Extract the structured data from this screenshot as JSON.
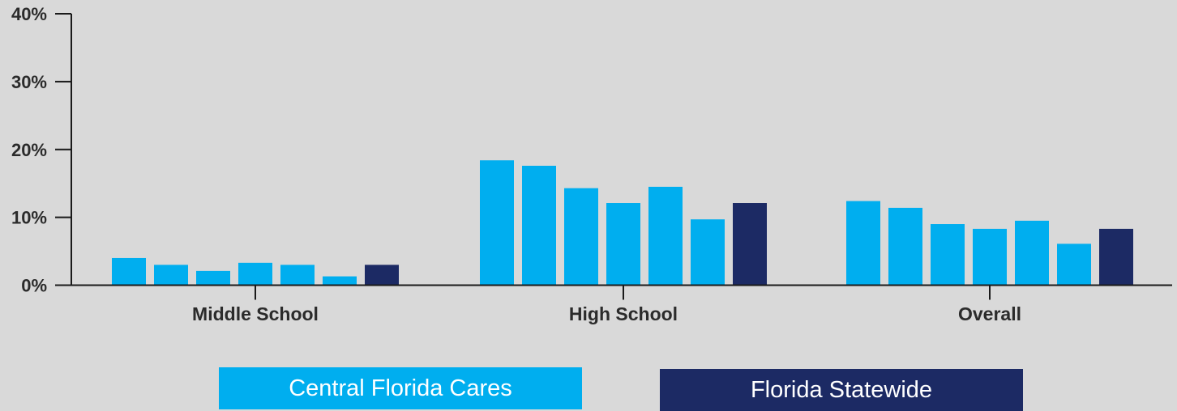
{
  "chart_data": {
    "type": "bar",
    "title": "",
    "xlabel": "",
    "ylabel": "",
    "ylim": [
      0,
      40
    ],
    "y_ticks": [
      "0%",
      "10%",
      "20%",
      "30%",
      "40%"
    ],
    "y_tick_values": [
      0,
      10,
      20,
      30,
      40
    ],
    "categories": [
      "Middle School",
      "High School",
      "Overall"
    ],
    "series": [
      {
        "legend_group": "Central Florida Cares",
        "color": "#00aeef",
        "values": [
          4.0,
          18.4,
          12.4
        ]
      },
      {
        "legend_group": "Central Florida Cares",
        "color": "#00aeef",
        "values": [
          3.0,
          17.6,
          11.4
        ]
      },
      {
        "legend_group": "Central Florida Cares",
        "color": "#00aeef",
        "values": [
          2.1,
          14.3,
          9.0
        ]
      },
      {
        "legend_group": "Central Florida Cares",
        "color": "#00aeef",
        "values": [
          3.3,
          12.1,
          8.3
        ]
      },
      {
        "legend_group": "Central Florida Cares",
        "color": "#00aeef",
        "values": [
          3.0,
          14.5,
          9.5
        ]
      },
      {
        "legend_group": "Central Florida Cares",
        "color": "#00aeef",
        "values": [
          1.3,
          9.7,
          6.1
        ]
      },
      {
        "legend_group": "Florida Statewide",
        "color": "#1c2a64",
        "values": [
          3.0,
          12.1,
          8.3
        ]
      }
    ],
    "grid": false,
    "legend_position": "bottom"
  },
  "legend": [
    {
      "label": "Central Florida Cares",
      "color": "#00aeef"
    },
    {
      "label": "Florida Statewide",
      "color": "#1c2a64"
    }
  ]
}
